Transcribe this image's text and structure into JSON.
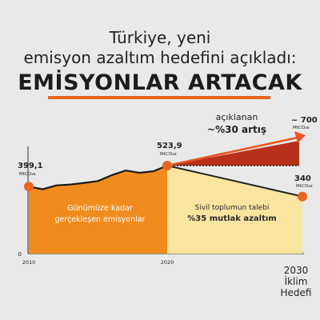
{
  "title_line1": "Türkiye, yeni",
  "title_line2": "emisyon azaltım hedefini açıkladı:",
  "headline": "EMİSYONLAR ARTACAK",
  "colors": {
    "past_fill": "#f08c1e",
    "cut_fill": "#fae5a0",
    "rise_fill": "#b8321a",
    "rise_line": "#ea5522",
    "cut_line": "#222222",
    "point": "#e8651f",
    "headline_rule": "#e8651f"
  },
  "chart_data": {
    "type": "area",
    "x_ticks": [
      "2010",
      "2020"
    ],
    "x_end_label": [
      "2030",
      "İklim",
      "Hedefi"
    ],
    "y_ticks": [
      "0"
    ],
    "unit": "MtCO₂e",
    "historical": {
      "years": [
        2010,
        2011,
        2012,
        2013,
        2014,
        2015,
        2016,
        2017,
        2018,
        2019,
        2020
      ],
      "values": [
        399.1,
        383,
        406,
        411,
        421,
        432,
        467,
        495,
        481,
        490,
        523.9
      ],
      "label_line1": "Günümüze kadar",
      "label_line2": "gerçekleşen emisyonlar"
    },
    "start_point": {
      "year": 2010,
      "value": 399.1,
      "label": "399,1",
      "unit": "MtCO₂e"
    },
    "pivot_point": {
      "year": 2020,
      "value": 523.9,
      "label": "523,9",
      "unit": "MtCO₂e"
    },
    "announced": {
      "year": 2030,
      "value": 700,
      "label": "~ 700",
      "unit": "MtCO₂e",
      "caption_line1": "açıklanan",
      "caption_line2": "~%30 artış"
    },
    "civil_society": {
      "year": 2030,
      "value": 340,
      "label": "340",
      "unit": "MtCO₂e",
      "caption_line1": "Sivil toplumun talebi",
      "caption_line2": "%35 mutlak azaltım"
    }
  }
}
